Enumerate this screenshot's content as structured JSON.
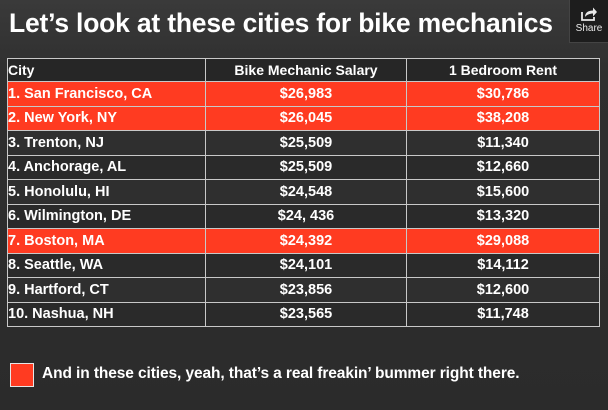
{
  "title": "Let’s look at these cities for bike mechanics",
  "share": {
    "label": "Share",
    "icon": "share-icon"
  },
  "table": {
    "headers": {
      "city": "City",
      "salary": "Bike Mechanic Salary",
      "rent": "1 Bedroom Rent"
    },
    "rows": [
      {
        "city": "1. San Francisco, CA",
        "salary": "$26,983",
        "rent": "$30,786",
        "highlighted": true
      },
      {
        "city": "2. New York, NY",
        "salary": "$26,045",
        "rent": "$38,208",
        "highlighted": true
      },
      {
        "city": "3. Trenton, NJ",
        "salary": "$25,509",
        "rent": "$11,340",
        "highlighted": false
      },
      {
        "city": "4. Anchorage, AL",
        "salary": "$25,509",
        "rent": "$12,660",
        "highlighted": false
      },
      {
        "city": "5. Honolulu, HI",
        "salary": "$24,548",
        "rent": "$15,600",
        "highlighted": false
      },
      {
        "city": "6. Wilmington, DE",
        "salary": "$24, 436",
        "rent": "$13,320",
        "highlighted": false
      },
      {
        "city": "7. Boston, MA",
        "salary": "$24,392",
        "rent": "$29,088",
        "highlighted": true
      },
      {
        "city": "8. Seattle, WA",
        "salary": "$24,101",
        "rent": "$14,112",
        "highlighted": false
      },
      {
        "city": "9. Hartford, CT",
        "salary": "$23,856",
        "rent": "$12,600",
        "highlighted": false
      },
      {
        "city": "10. Nashua, NH",
        "salary": "$23,565",
        "rent": "$11,748",
        "highlighted": false
      }
    ]
  },
  "legend": {
    "text": "And in these cities, yeah, that’s a real freakin’ bummer right there."
  },
  "colors": {
    "highlight": "#ff3b21",
    "background": "#2e2e2e",
    "text": "#ffffff",
    "grid": "#c8c8c8"
  }
}
